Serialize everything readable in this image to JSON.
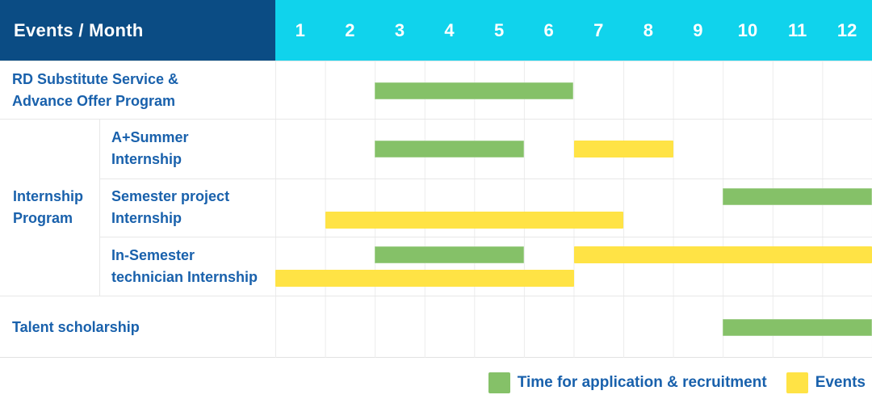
{
  "colors": {
    "header_bg": "#0B4C84",
    "months_bg": "#10D3EC",
    "green": "#85C168",
    "yellow": "#FFE345",
    "label_text": "#1961AC",
    "grid_line": "#ECECEC"
  },
  "header": {
    "label": "Events / Month",
    "months": [
      "1",
      "2",
      "3",
      "4",
      "5",
      "6",
      "7",
      "8",
      "9",
      "10",
      "11",
      "12"
    ]
  },
  "rows": [
    {
      "label": "RD Substitute Service &\nAdvance Offer Program",
      "lines": [
        [
          {
            "type": "green",
            "start": 3,
            "end": 6
          }
        ]
      ]
    },
    {
      "group": "Internship\nProgram",
      "label": "A+Summer\nInternship",
      "lines": [
        [
          {
            "type": "green",
            "start": 3,
            "end": 5
          },
          {
            "type": "yellow",
            "start": 7,
            "end": 8
          }
        ]
      ]
    },
    {
      "label": "Semester project\nInternship",
      "lines": [
        [
          {
            "type": "green",
            "start": 10,
            "end": 12
          }
        ],
        [
          {
            "type": "yellow",
            "start": 2,
            "end": 7
          }
        ]
      ]
    },
    {
      "label": "In-Semester\ntechnician Internship",
      "lines": [
        [
          {
            "type": "green",
            "start": 3,
            "end": 5
          },
          {
            "type": "yellow",
            "start": 7,
            "end": 12
          }
        ],
        [
          {
            "type": "yellow",
            "start": 1,
            "end": 6
          }
        ]
      ]
    },
    {
      "label": "Talent scholarship",
      "lines": [
        [
          {
            "type": "green",
            "start": 10,
            "end": 12
          }
        ]
      ]
    }
  ],
  "legend": [
    {
      "color": "green",
      "label": "Time for application & recruitment"
    },
    {
      "color": "yellow",
      "label": "Events"
    }
  ],
  "chart_data": {
    "type": "bar",
    "subtype": "gantt-schedule",
    "title": "Events / Month",
    "x_categories": [
      1,
      2,
      3,
      4,
      5,
      6,
      7,
      8,
      9,
      10,
      11,
      12
    ],
    "xlim": [
      1,
      12
    ],
    "grid": true,
    "legend_position": "bottom-right",
    "series_legend": [
      "Time for application & recruitment",
      "Events"
    ],
    "rows": [
      {
        "event": "RD Substitute Service & Advance Offer Program",
        "group": null,
        "bars": [
          {
            "series": "Time for application & recruitment",
            "start_month": 3,
            "end_month": 6
          }
        ]
      },
      {
        "event": "A+Summer Internship",
        "group": "Internship Program",
        "bars": [
          {
            "series": "Time for application & recruitment",
            "start_month": 3,
            "end_month": 5
          },
          {
            "series": "Events",
            "start_month": 7,
            "end_month": 8
          }
        ]
      },
      {
        "event": "Semester project Internship",
        "group": "Internship Program",
        "bars": [
          {
            "series": "Time for application & recruitment",
            "start_month": 10,
            "end_month": 12
          },
          {
            "series": "Events",
            "start_month": 2,
            "end_month": 7
          }
        ]
      },
      {
        "event": "In-Semester technician Internship",
        "group": "Internship Program",
        "bars": [
          {
            "series": "Time for application & recruitment",
            "start_month": 3,
            "end_month": 5
          },
          {
            "series": "Events",
            "start_month": 7,
            "end_month": 12
          },
          {
            "series": "Events",
            "start_month": 1,
            "end_month": 6
          }
        ]
      },
      {
        "event": "Talent scholarship",
        "group": null,
        "bars": [
          {
            "series": "Time for application & recruitment",
            "start_month": 10,
            "end_month": 12
          }
        ]
      }
    ]
  }
}
